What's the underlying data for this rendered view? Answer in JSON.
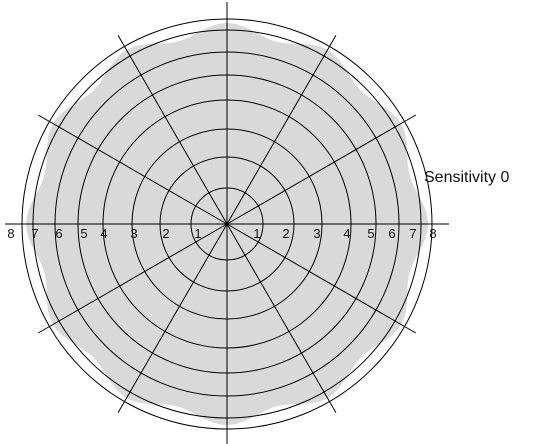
{
  "diagram": {
    "label": "Sensitivity 0",
    "ring_numbers": [
      1,
      2,
      3,
      4,
      5,
      6,
      7,
      8
    ],
    "left_tick_labels": [
      "8",
      "7",
      "6",
      "5",
      "4",
      "3",
      "2",
      "1"
    ],
    "right_tick_labels": [
      "1",
      "2",
      "3",
      "4",
      "5",
      "6",
      "7",
      "8"
    ],
    "spoke_count": 12,
    "colors": {
      "coverage_fill": "#d9d9d9",
      "lines": "#000000",
      "background": "#ffffff"
    }
  }
}
